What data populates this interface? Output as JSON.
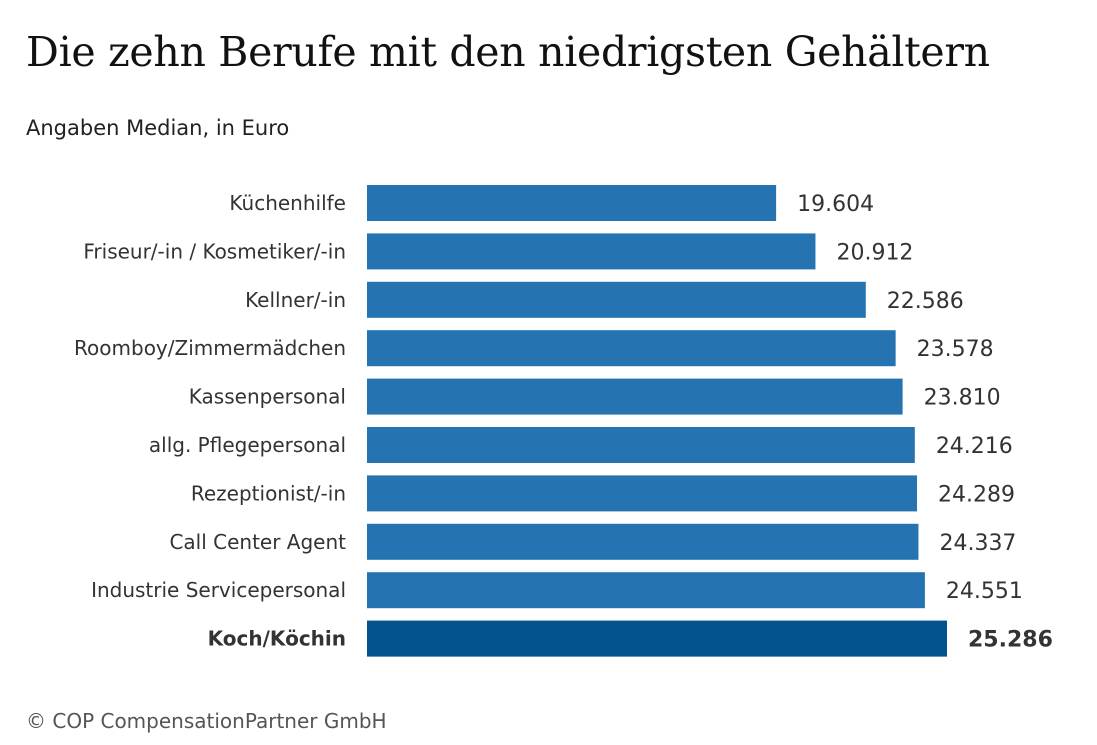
{
  "header": {
    "title": "Die zehn Berufe mit den niedrigsten Gehältern",
    "subtitle": "Angaben Median, in Euro"
  },
  "footer": {
    "source": "© COP CompensationPartner GmbH"
  },
  "colors": {
    "bar": "#2574b1",
    "bar_highlight": "#02528e",
    "label_text": "#333333",
    "value_text": "#333333"
  },
  "chart_data": {
    "type": "bar",
    "orientation": "horizontal",
    "title": "Die zehn Berufe mit den niedrigsten Gehältern",
    "subtitle": "Angaben Median, in Euro",
    "categories": [
      "Küchenhilfe",
      "Friseur/-in / Kosmetiker/-in",
      "Kellner/-in",
      "Roomboy/Zimmermädchen",
      "Kassenpersonal",
      "allg. Pflegepersonal",
      "Rezeptionist/-in",
      "Call Center Agent",
      "Industrie Servicepersonal",
      "Koch/Köchin"
    ],
    "values": [
      19604,
      20912,
      22586,
      23578,
      23810,
      24216,
      24289,
      24337,
      24551,
      25286
    ],
    "value_labels": [
      "19.604",
      "20.912",
      "22.586",
      "23.578",
      "23.810",
      "24.216",
      "24.289",
      "24.337",
      "24.551",
      "25.286"
    ],
    "highlight": "Koch/Köchin",
    "xlim": [
      6000,
      25286
    ],
    "grid": false,
    "legend": "none"
  }
}
